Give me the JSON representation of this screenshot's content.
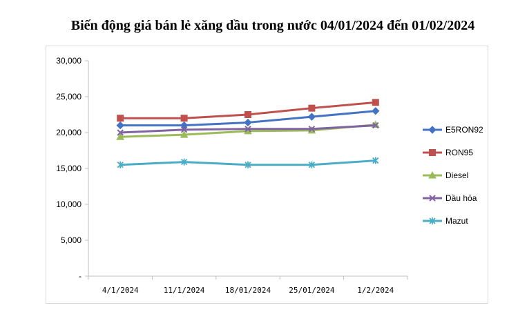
{
  "chart_data": {
    "type": "line",
    "title": "Biến động giá bán lẻ xăng dầu trong nước 04/01/2024 đến 01/02/2024",
    "categories": [
      "4/1/2024",
      "11/1/2024",
      "18/01/2024",
      "25/01/2024",
      "1/2/2024"
    ],
    "ylim": [
      0,
      30000
    ],
    "y_ticks": [
      {
        "value": 0,
        "label": "-"
      },
      {
        "value": 5000,
        "label": "5,000"
      },
      {
        "value": 10000,
        "label": "10,000"
      },
      {
        "value": 15000,
        "label": "15,000"
      },
      {
        "value": 20000,
        "label": "20,000"
      },
      {
        "value": 25000,
        "label": "25,000"
      },
      {
        "value": 30000,
        "label": "30,000"
      }
    ],
    "grid": false,
    "legend": "right",
    "series": [
      {
        "name": "E5RON92",
        "color": "#4472C4",
        "marker": "diamond",
        "values": [
          21000,
          21000,
          21400,
          22200,
          23000
        ]
      },
      {
        "name": "RON95",
        "color": "#C0504D",
        "marker": "square",
        "values": [
          22000,
          22000,
          22500,
          23400,
          24200
        ]
      },
      {
        "name": "Diesel",
        "color": "#9BBB59",
        "marker": "triangle",
        "values": [
          19400,
          19700,
          20200,
          20300,
          21100
        ]
      },
      {
        "name": "Dầu hỏa",
        "color": "#8064A2",
        "marker": "x",
        "values": [
          20000,
          20400,
          20500,
          20500,
          21000
        ]
      },
      {
        "name": "Mazut",
        "color": "#4BACC6",
        "marker": "star",
        "values": [
          15500,
          15900,
          15500,
          15500,
          16100
        ]
      }
    ]
  }
}
